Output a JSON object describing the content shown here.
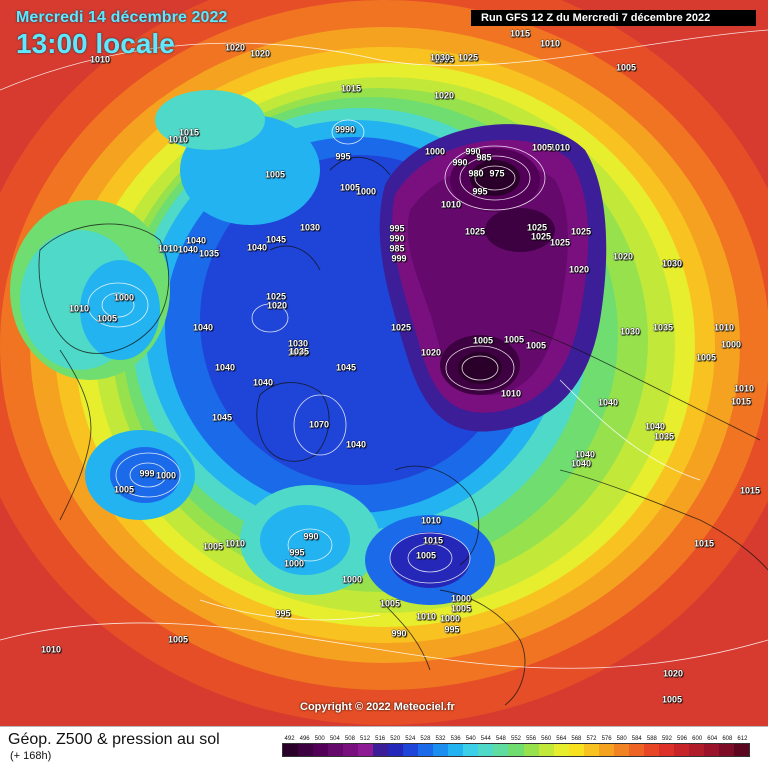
{
  "header": {
    "date": "Mercredi 14 décembre 2022",
    "time": "13:00 locale",
    "run_info": "Run GFS 12 Z du Mercredi 7 décembre 2022"
  },
  "copyright": "Copyright © 2022 Meteociel.fr",
  "legend": {
    "title": "Géop. Z500 & pression au sol",
    "subtitle": "(+ 168h)",
    "ticks": [
      "492",
      "496",
      "500",
      "504",
      "508",
      "512",
      "516",
      "520",
      "524",
      "528",
      "532",
      "536",
      "540",
      "544",
      "548",
      "552",
      "556",
      "560",
      "564",
      "568",
      "572",
      "576",
      "580",
      "584",
      "588",
      "592",
      "596",
      "600",
      "604",
      "608",
      "612"
    ],
    "colors": [
      "#2a002a",
      "#3d0040",
      "#520057",
      "#650a6c",
      "#7a1080",
      "#8e1b96",
      "#3b1e98",
      "#2427b7",
      "#1f44d8",
      "#1b6aea",
      "#1c8ef0",
      "#22b3f0",
      "#3bcfe8",
      "#4fd9c8",
      "#5fdca0",
      "#6fdd70",
      "#97e24c",
      "#c2e93a",
      "#e7ee2d",
      "#f8e21f",
      "#f8c320",
      "#f6a221",
      "#f28322",
      "#ee6424",
      "#e84726",
      "#dc3028",
      "#c7242a",
      "#b11c2b",
      "#9b132b",
      "#7d0c26",
      "#5c0620"
    ]
  },
  "isobar_labels": [
    "1015",
    "1010",
    "1005",
    "1015",
    "1010",
    "1005",
    "1020",
    "1020",
    "1010",
    "1015",
    "1020",
    "1030",
    "1025",
    "1005",
    "1010",
    "995",
    "1000",
    "990",
    "9990",
    "995",
    "1005",
    "1000",
    "990",
    "985",
    "980",
    "975",
    "1010",
    "1005",
    "995",
    "990",
    "985",
    "999",
    "1025",
    "1025",
    "1025",
    "1025",
    "1020",
    "1020",
    "1030",
    "1025",
    "1005",
    "1020",
    "1040",
    "1010",
    "1040",
    "1035",
    "1040",
    "1045",
    "1030",
    "1030",
    "1025",
    "1020",
    "1035",
    "1040",
    "1010",
    "1000",
    "1005",
    "1000",
    "1005",
    "1040",
    "1010",
    "1025",
    "1030",
    "1035",
    "1015",
    "1045",
    "1005",
    "1010",
    "1005",
    "1030",
    "1035",
    "1045",
    "1040",
    "1040",
    "1070",
    "1010",
    "1040",
    "1035",
    "1040",
    "1015",
    "999",
    "1000",
    "1005",
    "1040",
    "1040",
    "1005",
    "1010",
    "990",
    "995",
    "1000",
    "995",
    "1000",
    "1005",
    "1010",
    "1015",
    "1005",
    "1000",
    "1005",
    "1010",
    "1000",
    "995",
    "990",
    "1005",
    "1020",
    "1005",
    "1010",
    "1015",
    "1005"
  ],
  "colors": {
    "cold_core": "#2a002a",
    "hot_edge": "#d73b2f",
    "header_text": "#5fe9ff",
    "run_bg": "#000000"
  }
}
